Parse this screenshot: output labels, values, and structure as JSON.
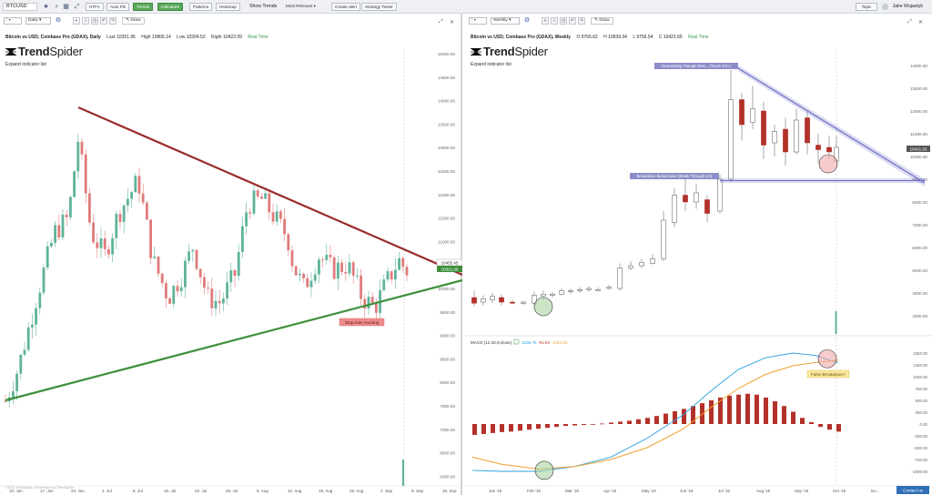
{
  "topbar": {
    "symbol": "BTCUSD",
    "buttons": [
      "HTFA",
      "Auto Fib",
      "Trends",
      "Indicators",
      "Patterns",
      "Heatmap"
    ],
    "show_trends": "Show Trends",
    "most_relevant": "Most Relevant",
    "create_alert": "Create alert",
    "strategy_tester": "Strategy Tester",
    "topic": "Topic",
    "user": "Jake Wujastyk"
  },
  "left": {
    "interval": "Daily",
    "draw": "Draw",
    "title": "Bitcoin vs USD, Coinbase Pro (GDAX), Daily",
    "open_label": "Last",
    "open_value": "10351.95",
    "high_label": "High",
    "high_value": "10906.14",
    "low_label": "Low",
    "low_value": "10304.52",
    "close_label": "Right",
    "close_value": "10422.09",
    "realtime": "Real Time",
    "logo_a": "Trend",
    "logo_b": "Spider",
    "expand": "Expand indicator list",
    "annotation": "Stop-loss Hunting",
    "price_tag": "10321.69",
    "price_tag2": "10455.45",
    "watermark": "©2019 TrendSpider. Momentum via TrendSpider",
    "y_ticks": [
      "15000.00",
      "14500.00",
      "14000.00",
      "13500.00",
      "13000.00",
      "12500.00",
      "12000.00",
      "11500.00",
      "11000.00",
      "10500.00",
      "10000.00",
      "9500.00",
      "9000.00",
      "8500.00",
      "8000.00",
      "7500.00",
      "7000.00",
      "6500.00",
      "6000.00",
      "5500.00"
    ],
    "x_ticks": [
      "10. Jun",
      "17. Jun",
      "24. Jun",
      "1. Jul",
      "8. Jul",
      "15. Jul",
      "22. Jul",
      "29. Jul",
      "5. Aug",
      "12. Aug",
      "19. Aug",
      "26. Aug",
      "2. Sep",
      "9. Sep",
      "16. Sep"
    ]
  },
  "right": {
    "interval": "Weekly",
    "draw": "Draw",
    "title": "Bitcoin vs USD, Coinbase Pro (GDAX), Weekly",
    "open_label": "O",
    "open_value": "9766.62",
    "high_label": "H",
    "high_value": "10939.34",
    "low_label": "L",
    "low_value": "9756.54",
    "close_label": "C",
    "close_value": "10421.65",
    "realtime": "Real Time",
    "logo_a": "Trend",
    "logo_b": "Spider",
    "expand": "Expand indicator list",
    "annotation_top": "Descending Triangle Resi... (Touch 2/4+)",
    "annotation_mid": "Breakdown Below Base (Break Through 2/4)",
    "price_tag": "10421.65",
    "macd_label": "MACD (12,26,9,close)",
    "macd_v1": "1036.75",
    "macd_v2": "-91.54",
    "macd_v3": "1128.30",
    "false_break": "False Breakdown?",
    "contact": "Contact us",
    "y_ticks": [
      "14000.00",
      "13000.00",
      "12000.00",
      "11000.00",
      "10000.00",
      "9000.00",
      "8000.00",
      "7000.00",
      "6000.00",
      "5000.00",
      "4000.00",
      "3000.00"
    ],
    "macd_ticks": [
      "1500.00",
      "1250.00",
      "1000.00",
      "750.00",
      "500.00",
      "250.00",
      "0.00",
      "-250.00",
      "-500.00",
      "-750.00",
      "-1000.00"
    ],
    "x_ticks": [
      "Jan '19",
      "Feb '19",
      "Mar '19",
      "Apr '19",
      "May '19",
      "Jun '19",
      "Jul '19",
      "Aug '19",
      "Sep '19",
      "Oct '19",
      "No..."
    ]
  },
  "colors": {
    "bull": "#5fb39a",
    "bear": "#e07b7b",
    "bear_dark": "#b3312a",
    "resistance": "#9b2d2d",
    "support": "#3f8f3a",
    "macd": "#2aa0e0",
    "signal": "#f0a030",
    "triangle": "#6f6fc8"
  }
}
